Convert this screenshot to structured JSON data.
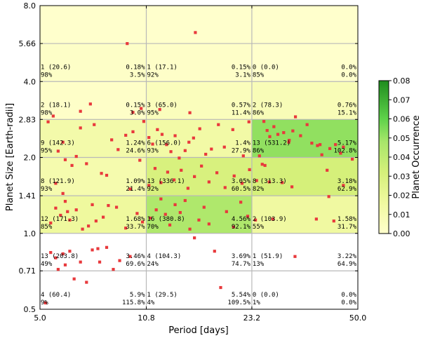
{
  "chart_data": {
    "type": "heatmap",
    "xlabel": "Period [days]",
    "ylabel": "Planet Size [Earth-radii]",
    "x_edges": [
      5.0,
      10.8,
      23.2,
      50.0
    ],
    "y_edges": [
      0.5,
      0.71,
      1.0,
      1.41,
      2.0,
      2.83,
      4.0,
      5.66,
      8.0
    ],
    "x_tick_labels": [
      "5.0",
      "10.8",
      "23.2",
      "50.0"
    ],
    "y_tick_labels": [
      "0.5",
      "0.71",
      "1.0",
      "1.41",
      "2.0",
      "2.83",
      "4.0",
      "5.66",
      "8.0"
    ],
    "x_scale": "log",
    "y_scale": "log",
    "grid": true,
    "colorbar": {
      "label": "Planet Occurrence",
      "min": 0.0,
      "max": 0.08,
      "ticks": [
        "0.00",
        "0.01",
        "0.02",
        "0.03",
        "0.04",
        "0.05",
        "0.06",
        "0.07",
        "0.08"
      ],
      "stops": [
        "#ffffcc",
        "#d9f0a3",
        "#addd8e",
        "#78c679",
        "#31a354",
        "#006837"
      ]
    },
    "cells": [
      {
        "row": 0,
        "col": 0,
        "left": "4 (60.4)",
        "right": "5.9%",
        "left2": "9%",
        "right2": "115.8%",
        "value": null
      },
      {
        "row": 0,
        "col": 1,
        "left": "1 (29.5)",
        "right": "5.54%",
        "left2": "4%",
        "right2": "109.5%",
        "value": null
      },
      {
        "row": 0,
        "col": 2,
        "left": "0 (0.0)",
        "right": "0.0%",
        "left2": "1%",
        "right2": "0.0%",
        "value": null
      },
      {
        "row": 1,
        "col": 0,
        "left": "13 (203.8)",
        "right": "3.46%",
        "left2": "49%",
        "right2": "69.6%",
        "value": null
      },
      {
        "row": 1,
        "col": 1,
        "left": "4 (104.3)",
        "right": "3.69%",
        "left2": "24%",
        "right2": "74.7%",
        "value": null
      },
      {
        "row": 1,
        "col": 2,
        "left": "1 (51.9)",
        "right": "3.22%",
        "left2": "13%",
        "right2": "64.9%",
        "value": null
      },
      {
        "row": 2,
        "col": 0,
        "left": "12 (171.3)",
        "right": "1.68%",
        "left2": "85%",
        "right2": "33.7%",
        "value": 0.0168
      },
      {
        "row": 2,
        "col": 1,
        "left": "16 (380.8)",
        "right": "4.56%",
        "left2": "70%",
        "right2": "92.1%",
        "value": 0.0456
      },
      {
        "row": 2,
        "col": 2,
        "left": "2 (103.9)",
        "right": "1.58%",
        "left2": "55%",
        "right2": "31.7%",
        "value": 0.0158
      },
      {
        "row": 3,
        "col": 0,
        "left": "8 (121.9)",
        "right": "1.09%",
        "left2": "93%",
        "right2": "21.4%",
        "value": 0.0109
      },
      {
        "row": 3,
        "col": 1,
        "left": "13 (336.1)",
        "right": "3.05%",
        "left2": "92%",
        "right2": "60.5%",
        "value": 0.0305
      },
      {
        "row": 3,
        "col": 2,
        "left": "8 (313.3)",
        "right": "3.18%",
        "left2": "82%",
        "right2": "62.9%",
        "value": 0.0318
      },
      {
        "row": 4,
        "col": 0,
        "left": "9 (142.3)",
        "right": "1.24%",
        "left2": "95%",
        "right2": "24.6%",
        "value": 0.0124
      },
      {
        "row": 4,
        "col": 1,
        "left": "6 (156.0)",
        "right": "1.4%",
        "left2": "93%",
        "right2": "27.9%",
        "value": 0.014
      },
      {
        "row": 4,
        "col": 2,
        "left": "13 (531.2)",
        "right": "5.17%",
        "left2": "86%",
        "right2": "102.8%",
        "value": 0.0517
      },
      {
        "row": 5,
        "col": 0,
        "left": "2 (18.1)",
        "right": "0.15%",
        "left2": "98%",
        "right2": "3.0%",
        "value": 0.0015
      },
      {
        "row": 5,
        "col": 1,
        "left": "3 (65.0)",
        "right": "0.57%",
        "left2": "95%",
        "right2": "11.4%",
        "value": 0.0057
      },
      {
        "row": 5,
        "col": 2,
        "left": "2 (78.3)",
        "right": "0.76%",
        "left2": "86%",
        "right2": "15.1%",
        "value": 0.0076
      },
      {
        "row": 6,
        "col": 0,
        "left": "1 (20.6)",
        "right": "0.18%",
        "left2": "98%",
        "right2": "3.5%",
        "value": 0.0018
      },
      {
        "row": 6,
        "col": 1,
        "left": "1 (17.1)",
        "right": "0.15%",
        "left2": "92%",
        "right2": "3.1%",
        "value": 0.0015
      },
      {
        "row": 6,
        "col": 2,
        "left": "0 (0.0)",
        "right": "0.0%",
        "left2": "85%",
        "right2": "0.0%",
        "value": 0.0
      },
      {
        "row": 7,
        "col": 0,
        "value": 0.0
      },
      {
        "row": 7,
        "col": 1,
        "value": 0.0
      },
      {
        "row": 7,
        "col": 2,
        "value": 0.0
      }
    ],
    "points": [
      [
        5.2,
        0.53
      ],
      [
        5.4,
        0.84
      ],
      [
        5.6,
        0.8
      ],
      [
        5.7,
        0.72
      ],
      [
        5.9,
        0.83
      ],
      [
        6.0,
        0.75
      ],
      [
        6.2,
        0.85
      ],
      [
        6.4,
        0.66
      ],
      [
        6.7,
        0.77
      ],
      [
        7.0,
        0.64
      ],
      [
        7.3,
        0.86
      ],
      [
        7.6,
        0.87
      ],
      [
        7.7,
        0.77
      ],
      [
        8.1,
        0.88
      ],
      [
        8.5,
        0.72
      ],
      [
        8.9,
        0.78
      ],
      [
        9.6,
        0.81
      ],
      [
        5.4,
        1.1
      ],
      [
        5.6,
        1.26
      ],
      [
        5.6,
        1.58
      ],
      [
        5.8,
        1.18
      ],
      [
        5.9,
        1.44
      ],
      [
        6.0,
        1.34
      ],
      [
        6.1,
        1.22
      ],
      [
        6.2,
        1.13
      ],
      [
        6.5,
        1.24
      ],
      [
        6.8,
        1.04
      ],
      [
        7.1,
        1.07
      ],
      [
        7.3,
        1.3
      ],
      [
        7.5,
        1.12
      ],
      [
        7.9,
        1.16
      ],
      [
        8.2,
        1.29
      ],
      [
        8.7,
        1.27
      ],
      [
        9.3,
        1.05
      ],
      [
        9.6,
        1.5
      ],
      [
        10.1,
        1.2
      ],
      [
        10.5,
        1.11
      ],
      [
        5.3,
        2.77
      ],
      [
        5.7,
        2.12
      ],
      [
        5.9,
        2.3
      ],
      [
        6.0,
        1.96
      ],
      [
        6.3,
        1.86
      ],
      [
        6.5,
        2.02
      ],
      [
        6.7,
        2.62
      ],
      [
        7.0,
        1.89
      ],
      [
        7.4,
        2.7
      ],
      [
        7.8,
        1.73
      ],
      [
        8.1,
        1.7
      ],
      [
        8.4,
        2.35
      ],
      [
        8.8,
        2.15
      ],
      [
        9.3,
        2.45
      ],
      [
        9.8,
        2.53
      ],
      [
        10.3,
        1.95
      ],
      [
        10.6,
        2.78
      ],
      [
        5.5,
        2.92
      ],
      [
        6.7,
        3.05
      ],
      [
        7.2,
        3.26
      ],
      [
        9.4,
        5.66
      ],
      [
        9.8,
        3.02
      ],
      [
        10.4,
        3.13
      ],
      [
        11.9,
        3.1
      ],
      [
        15.4,
        6.26
      ],
      [
        14.8,
        3.01
      ],
      [
        11.0,
        2.4
      ],
      [
        11.3,
        2.26
      ],
      [
        11.7,
        2.58
      ],
      [
        12.1,
        2.47
      ],
      [
        12.5,
        2.25
      ],
      [
        12.9,
        2.11
      ],
      [
        13.3,
        2.44
      ],
      [
        13.7,
        1.99
      ],
      [
        14.3,
        2.13
      ],
      [
        14.7,
        2.3
      ],
      [
        15.2,
        2.39
      ],
      [
        15.9,
        2.6
      ],
      [
        16.6,
        2.06
      ],
      [
        17.3,
        2.16
      ],
      [
        18.2,
        2.7
      ],
      [
        19.0,
        2.2
      ],
      [
        20.2,
        2.58
      ],
      [
        21.8,
        2.03
      ],
      [
        22.7,
        2.77
      ],
      [
        11.0,
        1.55
      ],
      [
        11.5,
        1.81
      ],
      [
        12.0,
        1.59
      ],
      [
        12.6,
        1.75
      ],
      [
        13.2,
        1.63
      ],
      [
        13.9,
        1.78
      ],
      [
        14.6,
        1.51
      ],
      [
        15.3,
        1.68
      ],
      [
        16.1,
        1.85
      ],
      [
        17.0,
        1.6
      ],
      [
        18.0,
        1.74
      ],
      [
        19.1,
        1.52
      ],
      [
        20.4,
        1.69
      ],
      [
        21.6,
        1.58
      ],
      [
        22.8,
        1.79
      ],
      [
        11.1,
        1.15
      ],
      [
        11.6,
        1.24
      ],
      [
        12.0,
        1.37
      ],
      [
        12.4,
        1.19
      ],
      [
        12.8,
        1.08
      ],
      [
        13.3,
        1.3
      ],
      [
        13.8,
        1.21
      ],
      [
        14.3,
        1.35
      ],
      [
        14.8,
        1.04
      ],
      [
        15.3,
        0.96
      ],
      [
        15.8,
        1.13
      ],
      [
        16.4,
        1.27
      ],
      [
        17.0,
        1.09
      ],
      [
        17.7,
        0.85
      ],
      [
        18.5,
        0.61
      ],
      [
        19.3,
        1.22
      ],
      [
        20.3,
        1.06
      ],
      [
        21.4,
        1.33
      ],
      [
        22.5,
        1.17
      ],
      [
        24.5,
        2.03
      ],
      [
        25.3,
        2.78
      ],
      [
        25.9,
        2.56
      ],
      [
        26.4,
        2.42
      ],
      [
        27.2,
        2.65
      ],
      [
        28.0,
        2.47
      ],
      [
        29.2,
        2.51
      ],
      [
        30.3,
        2.3
      ],
      [
        30.4,
        2.34
      ],
      [
        31.2,
        2.55
      ],
      [
        31.8,
        2.9
      ],
      [
        33.0,
        2.44
      ],
      [
        34.6,
        2.7
      ],
      [
        35.8,
        2.28
      ],
      [
        37.3,
        2.23
      ],
      [
        38.0,
        2.25
      ],
      [
        38.5,
        2.05
      ],
      [
        40.8,
        2.17
      ],
      [
        42.5,
        2.25
      ],
      [
        44.1,
        2.08
      ],
      [
        45.0,
        2.2
      ],
      [
        48.0,
        1.97
      ],
      [
        24.0,
        1.62
      ],
      [
        25.0,
        1.88
      ],
      [
        25.5,
        1.86
      ],
      [
        26.3,
        1.6
      ],
      [
        28.9,
        1.59
      ],
      [
        31.0,
        1.53
      ],
      [
        40.0,
        1.78
      ],
      [
        45.0,
        1.55
      ],
      [
        23.8,
        1.13
      ],
      [
        27.0,
        1.14
      ],
      [
        31.7,
        0.81
      ],
      [
        37.0,
        1.14
      ],
      [
        42.0,
        1.12
      ],
      [
        40.5,
        1.4
      ]
    ]
  }
}
